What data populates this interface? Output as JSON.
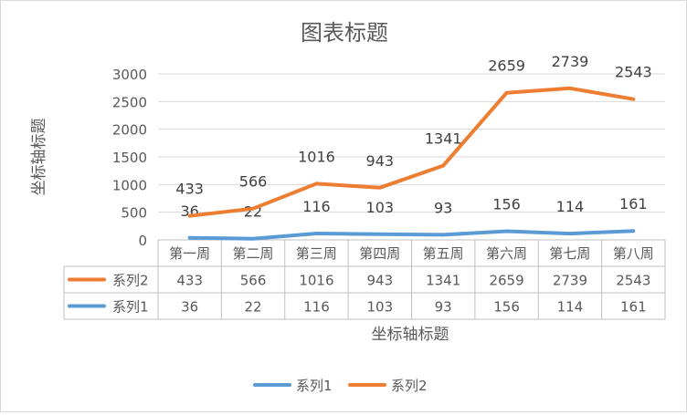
{
  "chart_data": {
    "type": "line",
    "title": "图表标题",
    "xlabel": "坐标轴标题",
    "ylabel": "坐标轴标题",
    "categories": [
      "第一周",
      "第二周",
      "第三周",
      "第四周",
      "第五周",
      "第六周",
      "第七周",
      "第八周"
    ],
    "ylim": [
      0,
      3000
    ],
    "yticks": [
      0,
      500,
      1000,
      1500,
      2000,
      2500,
      3000
    ],
    "grid": true,
    "legend_position": "bottom",
    "data_table": true,
    "series": [
      {
        "name": "系列1",
        "color": "#5b9bd5",
        "values": [
          36,
          22,
          116,
          103,
          93,
          156,
          114,
          161
        ]
      },
      {
        "name": "系列2",
        "color": "#ed7d31",
        "values": [
          433,
          566,
          1016,
          943,
          1341,
          2659,
          2739,
          2543
        ]
      }
    ]
  }
}
